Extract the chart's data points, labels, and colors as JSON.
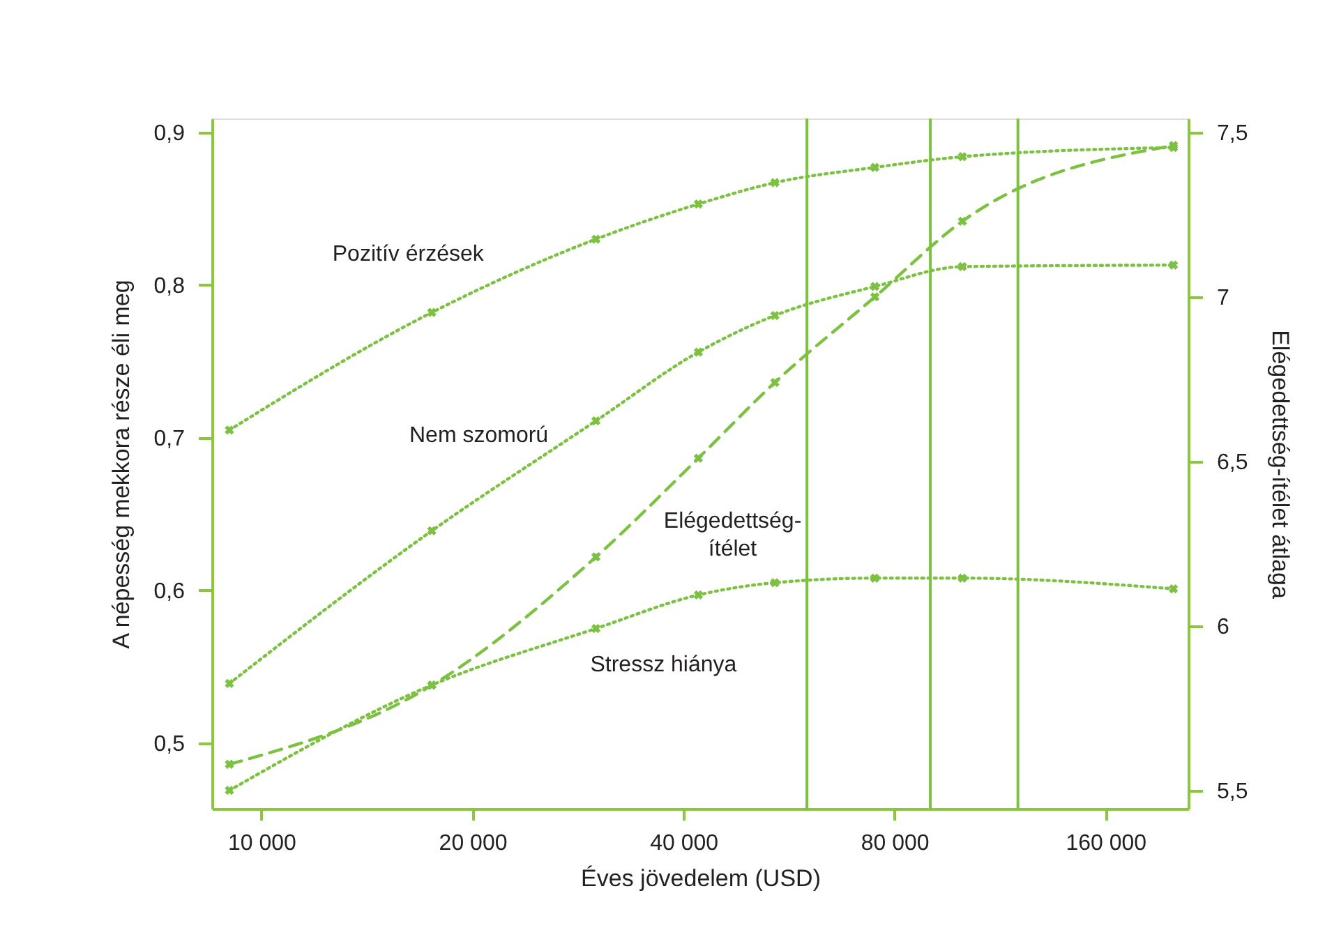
{
  "chart_data": {
    "type": "line",
    "xlabel": "Éves jövedelem (USD)",
    "ylabel": "A népesség mekkora része éli meg",
    "y2label": "Elégedettség-ítélet átlaga",
    "x": [
      9000,
      17500,
      30000,
      42000,
      54000,
      75000,
      100000,
      200000
    ],
    "series": [
      {
        "name": "Pozitív érzések",
        "color": "#7cc142",
        "line_style": "dotted",
        "values": [
          0.705,
          0.782,
          0.83,
          0.853,
          0.867,
          0.877,
          0.884,
          0.89
        ]
      },
      {
        "name": "Nem szomorú",
        "color": "#7cc142",
        "line_style": "dotted",
        "values": [
          0.539,
          0.639,
          0.711,
          0.756,
          0.78,
          0.799,
          0.812,
          0.813
        ]
      },
      {
        "name": "Elégedettség-ítélet",
        "color": "#7cc142",
        "line_style": "dashed",
        "axis": "y2",
        "values": [
          5.58,
          5.82,
          6.21,
          6.51,
          6.74,
          7.0,
          7.23,
          7.46
        ]
      },
      {
        "name": "Stressz hiánya",
        "color": "#7cc142",
        "line_style": "dotted",
        "values": [
          0.469,
          0.538,
          0.575,
          0.597,
          0.605,
          0.608,
          0.608,
          0.601
        ]
      }
    ],
    "marker": "cross",
    "log": "x",
    "grid": false,
    "xlim": [
      8500,
      210000
    ],
    "xticks": [
      {
        "value": 10000,
        "label": "10 000"
      },
      {
        "value": 20000,
        "label": "20 000"
      },
      {
        "value": 40000,
        "label": "40 000"
      },
      {
        "value": 80000,
        "label": "80 000"
      },
      {
        "value": 160000,
        "label": "160 000"
      }
    ],
    "ylim": [
      0.457,
      0.909
    ],
    "yticks": [
      {
        "value": 0.5,
        "label": "0,5"
      },
      {
        "value": 0.6,
        "label": "0,6"
      },
      {
        "value": 0.7,
        "label": "0,7"
      },
      {
        "value": 0.8,
        "label": "0,8"
      },
      {
        "value": 0.9,
        "label": "0,9"
      }
    ],
    "y2lim": [
      5.445,
      7.542
    ],
    "y2ticks": [
      {
        "value": 5.5,
        "label": "5,5"
      },
      {
        "value": 6,
        "label": "6"
      },
      {
        "value": 6.5,
        "label": "6,5"
      },
      {
        "value": 7,
        "label": "7"
      },
      {
        "value": 7.5,
        "label": "7,5"
      }
    ],
    "ref_lines": [
      {
        "axis": "x",
        "value": 60000,
        "color": "#7cc142",
        "line_style": "solid"
      },
      {
        "axis": "x",
        "value": 90000,
        "color": "#7cc142",
        "line_style": "solid"
      },
      {
        "axis": "x",
        "value": 120000,
        "color": "#7cc142",
        "line_style": "solid"
      }
    ]
  }
}
